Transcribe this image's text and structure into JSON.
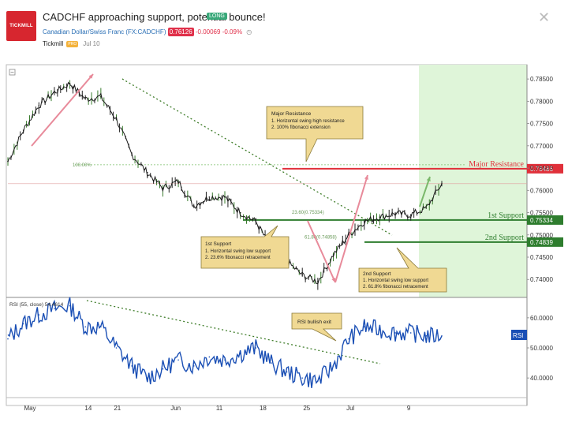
{
  "header": {
    "logo_text": "TICKMILL",
    "title": "CADCHF approaching support, potential bounce!",
    "long_badge": "LONG",
    "symbol": "Canadian Dollar/Swiss Franc (FX:CADCHF)",
    "price": "0.76126",
    "change": "-0.00069",
    "change_pct": "-0.09%",
    "author": "Tickmill",
    "author_badge": "PRO",
    "date": "Jul 10",
    "close_icon": "close-icon"
  },
  "colors": {
    "price_line": "#1a1a1a",
    "up_candle": "#3a7d2e",
    "rsi_line": "#1a4fb5",
    "resistance": "#e0303a",
    "support": "#2e7d2e",
    "future_zone": "#dff5d9",
    "trend_dotted": "#3f7d2a",
    "callout_fill": "#f0d993",
    "callout_border": "#8a7a3a",
    "accent_rsi_label": "#1a4fb5"
  },
  "chart_data": [
    {
      "type": "line",
      "name": "price",
      "x": [
        "May 1",
        "May 5",
        "May 8",
        "May 11",
        "May 14",
        "May 17",
        "May 20",
        "May 23",
        "May 26",
        "May 29",
        "Jun 1",
        "Jun 4",
        "Jun 7",
        "Jun 10",
        "Jun 13",
        "Jun 16",
        "Jun 18",
        "Jun 20",
        "Jun 22",
        "Jun 24",
        "Jun 25",
        "Jun 27",
        "Jun 29",
        "Jul 2",
        "Jul 5",
        "Jul 7",
        "Jul 9",
        "Jul 10",
        "Jul 11"
      ],
      "values": [
        0.7665,
        0.7735,
        0.779,
        0.782,
        0.784,
        0.7805,
        0.781,
        0.776,
        0.768,
        0.764,
        0.7605,
        0.762,
        0.7565,
        0.7585,
        0.7585,
        0.755,
        0.753,
        0.747,
        0.744,
        0.741,
        0.7395,
        0.7455,
        0.75,
        0.753,
        0.754,
        0.7548,
        0.7545,
        0.756,
        0.7615
      ],
      "yticks": [
        "0.78500",
        "0.78000",
        "0.77500",
        "0.77000",
        "0.76500",
        "0.76000",
        "0.75500",
        "0.75000",
        "0.74500",
        "0.74000"
      ],
      "xticks": [
        "May",
        "14",
        "21",
        "Jun",
        "11",
        "18",
        "25",
        "Jul",
        "9"
      ],
      "levels": [
        {
          "label": "Major Resistance",
          "value": "0.76486"
        },
        {
          "label": "1st Support",
          "value": "0.75334"
        },
        {
          "label": "2nd Support",
          "value": "0.74839"
        }
      ],
      "fib_labels": [
        "100.00%",
        "23.60(0.75334)",
        "61.80(0.74858)"
      ],
      "current_price_label": "",
      "ylim": [
        0.7365,
        0.7875
      ]
    },
    {
      "type": "line",
      "name": "RSI (55, close)",
      "legend": "RSI (55, close)",
      "legend_value": "54.4614",
      "x": [
        "May 1",
        "May 5",
        "May 8",
        "May 11",
        "May 14",
        "May 17",
        "May 20",
        "May 23",
        "May 26",
        "May 29",
        "Jun 1",
        "Jun 4",
        "Jun 7",
        "Jun 10",
        "Jun 13",
        "Jun 16",
        "Jun 18",
        "Jun 20",
        "Jun 22",
        "Jun 24",
        "Jun 25",
        "Jun 27",
        "Jun 29",
        "Jul 2",
        "Jul 5",
        "Jul 7",
        "Jul 9",
        "Jul 10",
        "Jul 11"
      ],
      "values": [
        53,
        58,
        61,
        63,
        64,
        57,
        57,
        50,
        44,
        40,
        43,
        46,
        44,
        47,
        46,
        48,
        50,
        45,
        42,
        40,
        39,
        44,
        53,
        57,
        56,
        55,
        55,
        54,
        54
      ],
      "yticks": [
        "60.0000",
        "50.0000",
        "40.0000"
      ],
      "tag": "RSI",
      "ylim": [
        34,
        66
      ]
    }
  ],
  "annotations": {
    "major_resistance": {
      "title": "Major Resistance",
      "line1": "1. Horizontal swing high resistance",
      "line2": "2. 100% fibonacci extension"
    },
    "first_support": {
      "title": "1st Support",
      "line1": "1. Horizontal swing low support",
      "line2": "2. 23.6% fibonacci retracement"
    },
    "second_support": {
      "title": "2nd Support",
      "line1": "1. Horizontal swing low support",
      "line2": "2. 61.8% fibonacci retracement"
    },
    "rsi_exit": {
      "title": "RSI bullish exit"
    }
  }
}
